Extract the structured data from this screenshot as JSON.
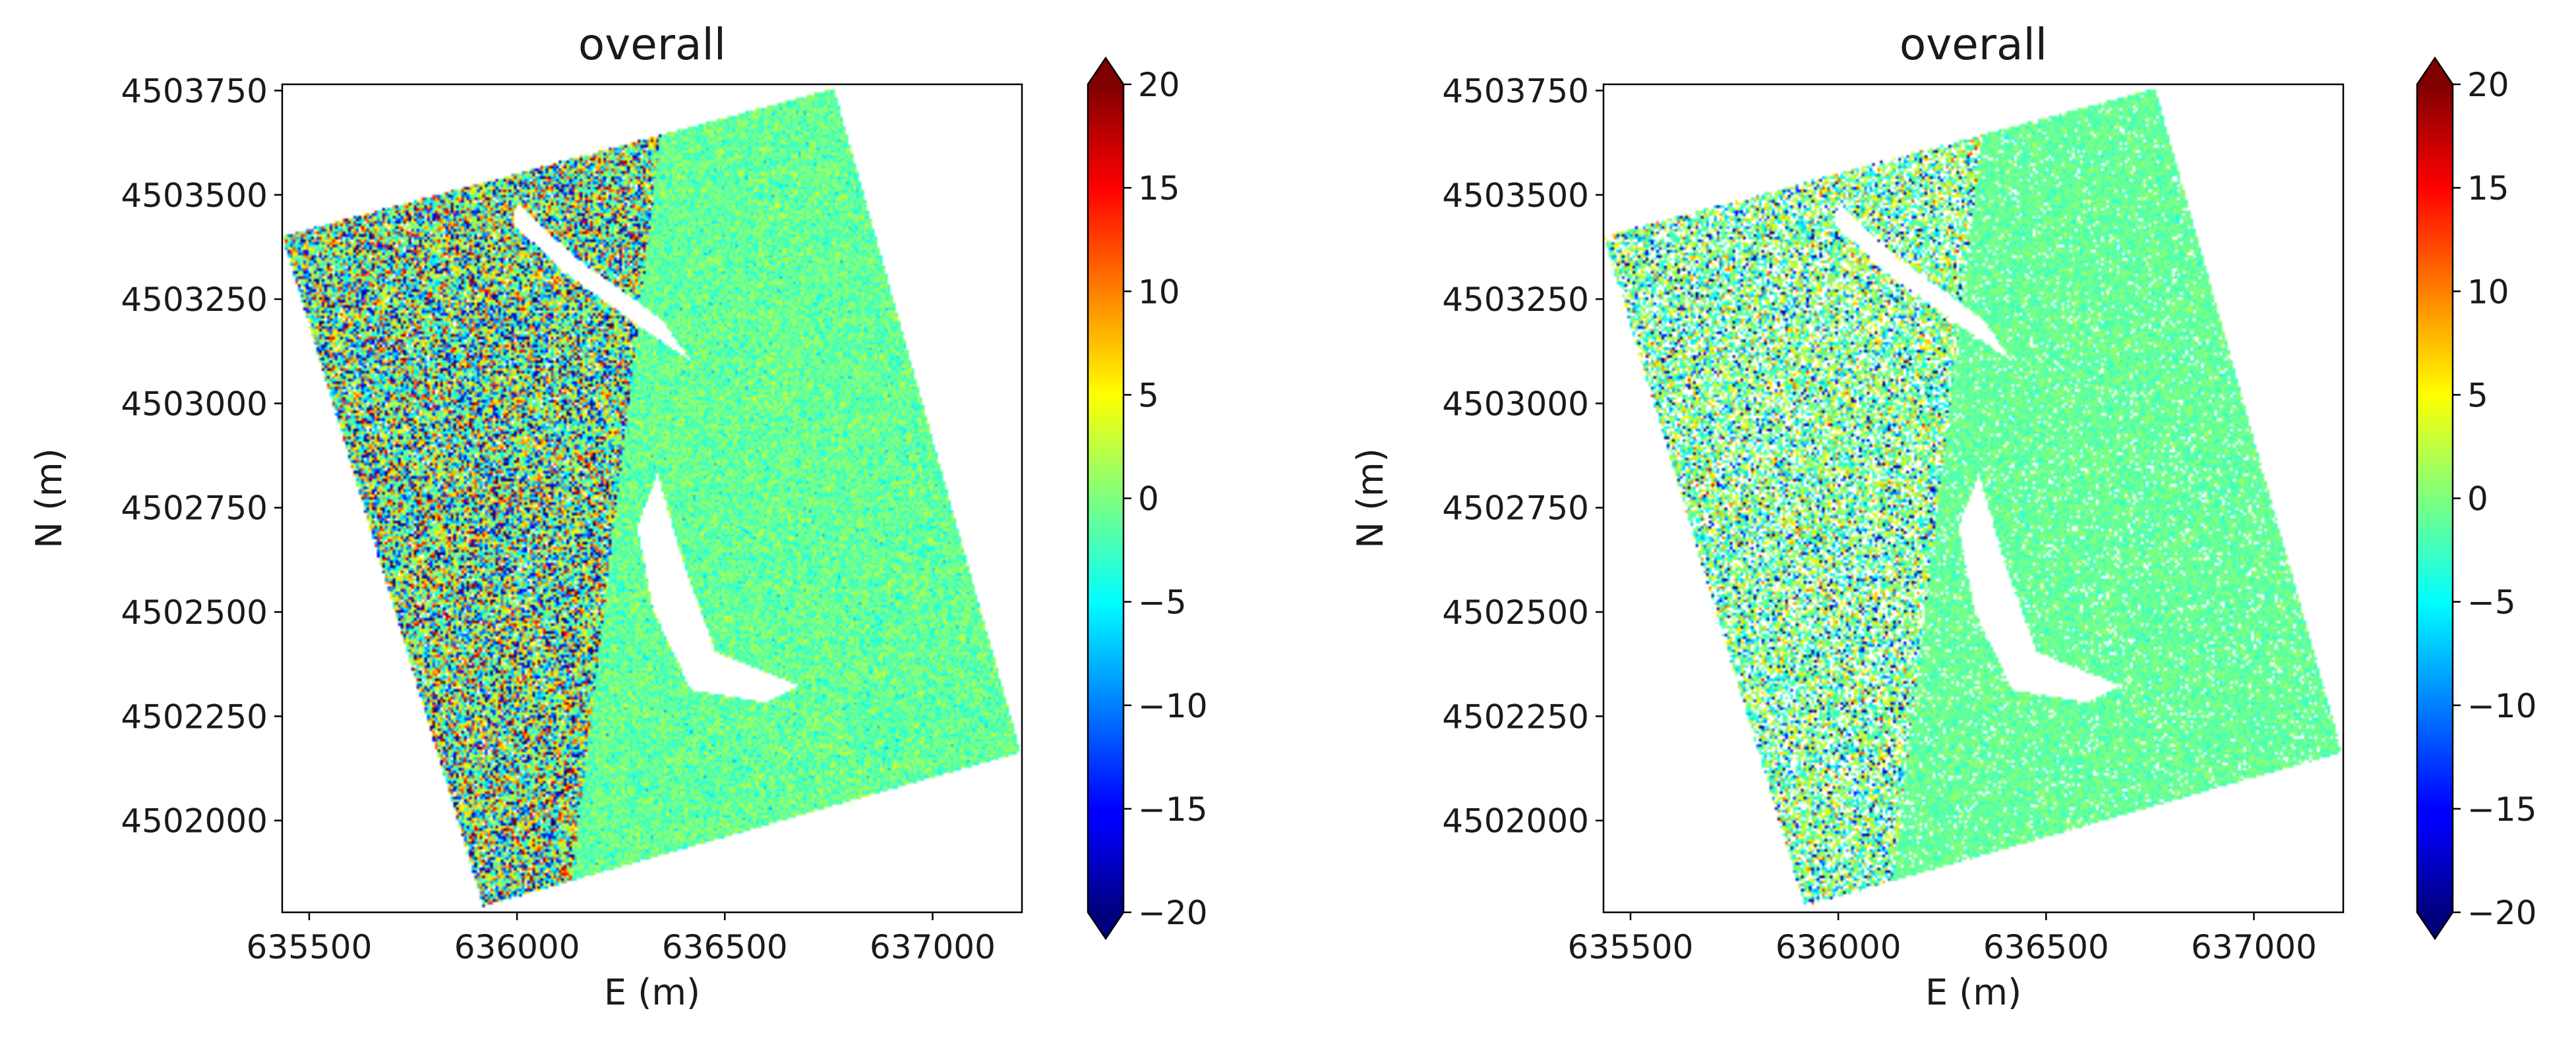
{
  "chart_data": [
    {
      "type": "heatmap",
      "title": "overall",
      "xlabel": "E (m)",
      "ylabel": "N (m)",
      "xlim": [
        635435,
        637215
      ],
      "ylim": [
        4501780,
        4503765
      ],
      "xticks": [
        635500,
        636000,
        636500,
        637000
      ],
      "yticks": [
        4502000,
        4502250,
        4502500,
        4502750,
        4503000,
        4503250,
        4503500,
        4503750
      ],
      "grid": false,
      "colormap": "jet",
      "colorbar": {
        "vmin": -20,
        "vmax": 20,
        "extend": "both",
        "ticks": [
          20,
          15,
          10,
          5,
          0,
          -5,
          -10,
          -15,
          -20
        ]
      },
      "footprint_corners": [
        [
          635435,
          4503400
        ],
        [
          636765,
          4503755
        ],
        [
          637215,
          4502160
        ],
        [
          635920,
          4501790
        ]
      ],
      "water_body": [
        [
          636000,
          4503480
        ],
        [
          636140,
          4503350
        ],
        [
          636350,
          4503200
        ],
        [
          636420,
          4503100
        ],
        [
          636300,
          4503180
        ],
        [
          636120,
          4503310
        ],
        [
          635990,
          4503430
        ]
      ],
      "lake": [
        [
          636340,
          4502830
        ],
        [
          636400,
          4502620
        ],
        [
          636480,
          4502400
        ],
        [
          636680,
          4502320
        ],
        [
          636600,
          4502280
        ],
        [
          636420,
          4502310
        ],
        [
          636330,
          4502500
        ],
        [
          636290,
          4502700
        ]
      ],
      "value_summary": {
        "western_zone_mean": 0,
        "western_zone_spread": 9,
        "eastern_zone_mean": -1,
        "eastern_zone_spread": 2,
        "coverage": 0.97
      }
    },
    {
      "type": "heatmap",
      "title": "overall",
      "xlabel": "E (m)",
      "ylabel": "N (m)",
      "xlim": [
        635435,
        637215
      ],
      "ylim": [
        4501780,
        4503765
      ],
      "xticks": [
        635500,
        636000,
        636500,
        637000
      ],
      "yticks": [
        4502000,
        4502250,
        4502500,
        4502750,
        4503000,
        4503250,
        4503500,
        4503750
      ],
      "grid": false,
      "colormap": "jet",
      "colorbar": {
        "vmin": -20,
        "vmax": 20,
        "extend": "both",
        "ticks": [
          20,
          15,
          10,
          5,
          0,
          -5,
          -10,
          -15,
          -20
        ]
      },
      "footprint_corners": [
        [
          635435,
          4503400
        ],
        [
          636765,
          4503755
        ],
        [
          637215,
          4502160
        ],
        [
          635920,
          4501790
        ]
      ],
      "water_body": [
        [
          636000,
          4503480
        ],
        [
          636140,
          4503350
        ],
        [
          636350,
          4503200
        ],
        [
          636420,
          4503100
        ],
        [
          636300,
          4503180
        ],
        [
          636120,
          4503310
        ],
        [
          635990,
          4503430
        ]
      ],
      "lake": [
        [
          636340,
          4502830
        ],
        [
          636400,
          4502620
        ],
        [
          636480,
          4502400
        ],
        [
          636680,
          4502320
        ],
        [
          636600,
          4502280
        ],
        [
          636420,
          4502310
        ],
        [
          636330,
          4502500
        ],
        [
          636290,
          4502700
        ]
      ],
      "value_summary": {
        "western_zone_mean": -0.5,
        "western_zone_spread": 5,
        "eastern_zone_mean": -1,
        "eastern_zone_spread": 1.2,
        "coverage": 0.72
      }
    }
  ]
}
